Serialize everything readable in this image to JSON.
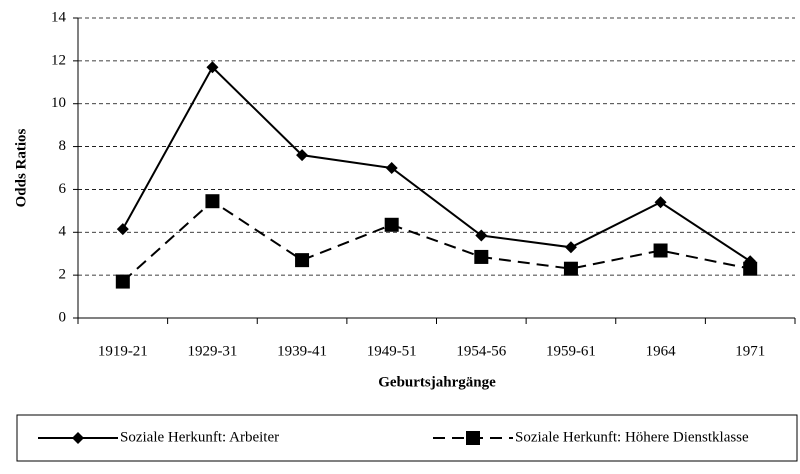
{
  "chart_data": {
    "type": "line",
    "x_label": "Geburtsjahrgänge",
    "y_label": "Odds Ratios",
    "categories": [
      "1919-21",
      "1929-31",
      "1939-41",
      "1949-51",
      "1954-56",
      "1959-61",
      "1964",
      "1971"
    ],
    "series": [
      {
        "name": "Soziale Herkunft: Arbeiter",
        "color": "#000000",
        "marker": "diamond",
        "line_style": "solid",
        "values": [
          4.15,
          11.7,
          7.6,
          7.0,
          3.85,
          3.3,
          5.4,
          2.65
        ]
      },
      {
        "name": "Soziale Herkunft: Höhere Dienstklasse",
        "color": "#000000",
        "marker": "square",
        "line_style": "dashed",
        "values": [
          1.7,
          5.45,
          2.7,
          4.35,
          2.85,
          2.3,
          3.15,
          2.3
        ]
      }
    ],
    "ylim": [
      0,
      14
    ],
    "yticks": [
      0,
      2,
      4,
      6,
      8,
      10,
      12,
      14
    ],
    "grid": true,
    "legend_position": "bottom"
  }
}
